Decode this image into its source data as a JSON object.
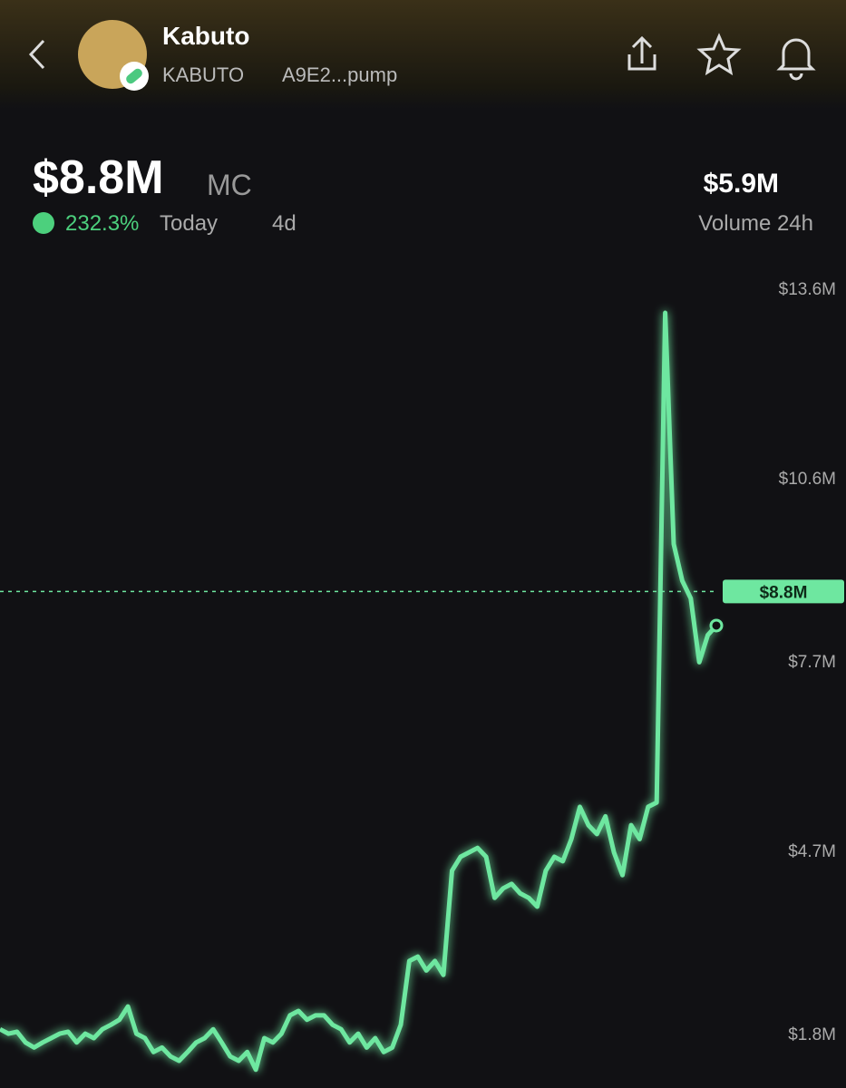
{
  "header": {
    "name": "Kabuto",
    "ticker": "KABUTO",
    "address": "A9E2...pump"
  },
  "stats": {
    "market_cap": "$8.8M",
    "market_cap_unit": "MC",
    "change": "232.3%",
    "change_period": "Today",
    "age": "4d",
    "volume": "$5.9M",
    "volume_label": "Volume 24h"
  },
  "chart_data": {
    "type": "line",
    "series": [
      {
        "name": "Market cap",
        "color": "#6ee7a0",
        "values": [
          1.87,
          1.8,
          1.83,
          1.66,
          1.58,
          1.66,
          1.73,
          1.8,
          1.83,
          1.66,
          1.8,
          1.73,
          1.87,
          1.94,
          2.02,
          2.23,
          1.8,
          1.73,
          1.51,
          1.58,
          1.44,
          1.37,
          1.51,
          1.66,
          1.73,
          1.87,
          1.66,
          1.44,
          1.37,
          1.51,
          1.23,
          1.73,
          1.66,
          1.8,
          2.09,
          2.16,
          2.02,
          2.09,
          2.09,
          1.94,
          1.87,
          1.66,
          1.8,
          1.58,
          1.73,
          1.51,
          1.58,
          1.94,
          2.95,
          3.02,
          2.8,
          2.95,
          2.73,
          4.38,
          4.6,
          4.67,
          4.74,
          4.6,
          3.95,
          4.1,
          4.17,
          4.02,
          3.95,
          3.81,
          4.38,
          4.6,
          4.53,
          4.88,
          5.39,
          5.1,
          4.96,
          5.24,
          4.67,
          4.31,
          5.1,
          4.88,
          5.39,
          5.46,
          13.21,
          9.55,
          8.97,
          8.69,
          7.68,
          8.11,
          8.26
        ]
      }
    ],
    "ylim": [
      0.94,
      14.0
    ],
    "yticks": [
      {
        "value": 1.8,
        "label": "$1.8M"
      },
      {
        "value": 4.7,
        "label": "$4.7M"
      },
      {
        "value": 7.7,
        "label": "$7.7M"
      },
      {
        "value": 10.6,
        "label": "$10.6M"
      },
      {
        "value": 13.6,
        "label": "$13.6M"
      }
    ],
    "current": {
      "value": 8.8,
      "label": "$8.8M"
    }
  }
}
